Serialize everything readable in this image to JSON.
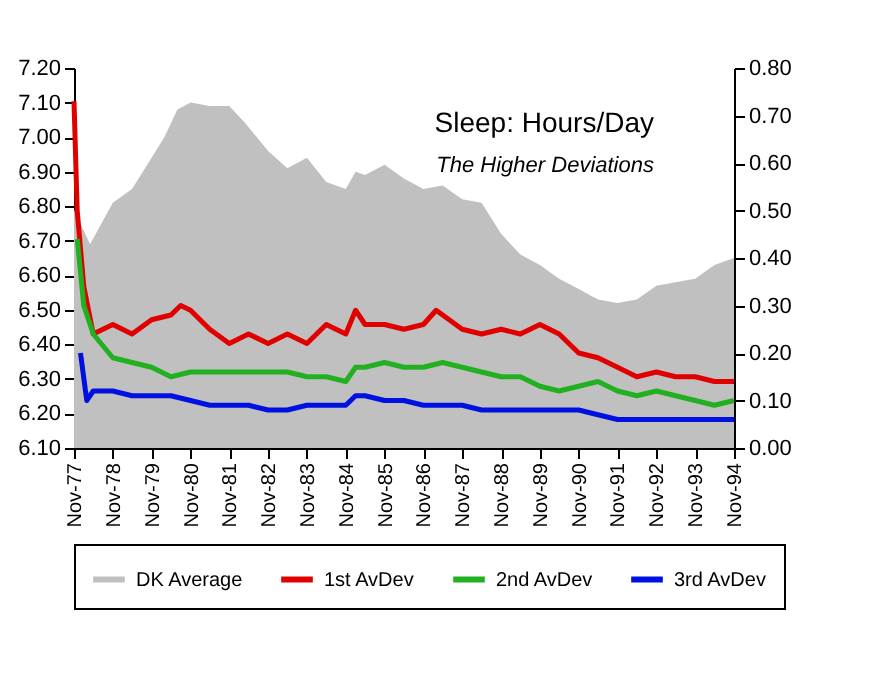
{
  "chart_data": {
    "type": "line",
    "title": "Sleep: Hours/Day",
    "subtitle": "The Higher Deviations",
    "legend": "bottom",
    "xlim": [
      "1977-11",
      "1994-11"
    ],
    "xticks": [
      {
        "value": "1977-11",
        "label": "Nov-77"
      },
      {
        "value": "1978-11",
        "label": "Nov-78"
      },
      {
        "value": "1979-11",
        "label": "Nov-79"
      },
      {
        "value": "1980-11",
        "label": "Nov-80"
      },
      {
        "value": "1981-11",
        "label": "Nov-81"
      },
      {
        "value": "1982-11",
        "label": "Nov-82"
      },
      {
        "value": "1983-11",
        "label": "Nov-83"
      },
      {
        "value": "1984-11",
        "label": "Nov-84"
      },
      {
        "value": "1985-11",
        "label": "Nov-85"
      },
      {
        "value": "1986-11",
        "label": "Nov-86"
      },
      {
        "value": "1987-11",
        "label": "Nov-87"
      },
      {
        "value": "1988-11",
        "label": "Nov-88"
      },
      {
        "value": "1989-11",
        "label": "Nov-89"
      },
      {
        "value": "1990-11",
        "label": "Nov-90"
      },
      {
        "value": "1991-11",
        "label": "Nov-91"
      },
      {
        "value": "1992-11",
        "label": "Nov-92"
      },
      {
        "value": "1993-11",
        "label": "Nov-93"
      },
      {
        "value": "1994-11",
        "label": "Nov-94"
      }
    ],
    "ylim": [
      6.1,
      7.2
    ],
    "yticks": [
      {
        "value": 6.1,
        "label": "6.10"
      },
      {
        "value": 6.2,
        "label": "6.20"
      },
      {
        "value": 6.3,
        "label": "6.30"
      },
      {
        "value": 6.4,
        "label": "6.40"
      },
      {
        "value": 6.5,
        "label": "6.50"
      },
      {
        "value": 6.6,
        "label": "6.60"
      },
      {
        "value": 6.7,
        "label": "6.70"
      },
      {
        "value": 6.8,
        "label": "6.80"
      },
      {
        "value": 6.9,
        "label": "6.90"
      },
      {
        "value": 7.0,
        "label": "7.00"
      },
      {
        "value": 7.1,
        "label": "7.10"
      },
      {
        "value": 7.2,
        "label": "7.20"
      }
    ],
    "y2lim": [
      0,
      0.8
    ],
    "y2ticks": [
      {
        "value": 0,
        "label": "0.00"
      },
      {
        "value": 0.1,
        "label": "0.10"
      },
      {
        "value": 0.2,
        "label": "0.20"
      },
      {
        "value": 0.3,
        "label": "0.30"
      },
      {
        "value": 0.4,
        "label": "0.40"
      },
      {
        "value": 0.5,
        "label": "0.50"
      },
      {
        "value": 0.6,
        "label": "0.60"
      },
      {
        "value": 0.7,
        "label": "0.70"
      },
      {
        "value": 0.8,
        "label": "0.80"
      }
    ],
    "series": [
      {
        "name": "DK Average",
        "type": "area",
        "color": "#c0c0c0",
        "x": [
          "1977-11",
          "1978-04",
          "1978-11",
          "1979-05",
          "1979-11",
          "1980-03",
          "1980-07",
          "1980-11",
          "1981-05",
          "1981-11",
          "1982-04",
          "1982-11",
          "1983-05",
          "1983-11",
          "1984-05",
          "1984-11",
          "1985-02",
          "1985-05",
          "1985-11",
          "1986-05",
          "1986-11",
          "1987-05",
          "1987-11",
          "1988-05",
          "1988-11",
          "1989-05",
          "1989-11",
          "1990-05",
          "1990-11",
          "1991-05",
          "1991-11",
          "1992-05",
          "1992-11",
          "1993-05",
          "1993-11",
          "1994-05",
          "1994-11"
        ],
        "values": [
          6.79,
          6.69,
          6.81,
          6.85,
          6.94,
          7.0,
          7.08,
          7.1,
          7.09,
          7.09,
          7.04,
          6.96,
          6.91,
          6.94,
          6.87,
          6.85,
          6.9,
          6.89,
          6.92,
          6.88,
          6.85,
          6.86,
          6.82,
          6.81,
          6.72,
          6.66,
          6.63,
          6.59,
          6.56,
          6.53,
          6.52,
          6.53,
          6.57,
          6.58,
          6.59,
          6.63,
          6.65
        ]
      },
      {
        "name": "1st AvDev",
        "type": "line",
        "axis": "y2",
        "color": "#e00000",
        "x": [
          "1977-11",
          "1977-12",
          "1978-02",
          "1978-05",
          "1978-11",
          "1979-05",
          "1979-11",
          "1980-05",
          "1980-08",
          "1980-11",
          "1981-05",
          "1981-11",
          "1982-05",
          "1982-11",
          "1983-05",
          "1983-11",
          "1984-05",
          "1984-11",
          "1985-02",
          "1985-05",
          "1985-11",
          "1986-05",
          "1986-11",
          "1987-03",
          "1987-11",
          "1988-05",
          "1988-11",
          "1989-05",
          "1989-11",
          "1990-05",
          "1990-11",
          "1991-05",
          "1991-11",
          "1992-05",
          "1992-11",
          "1993-05",
          "1993-11",
          "1994-05",
          "1994-11"
        ],
        "values": [
          0.73,
          0.5,
          0.34,
          0.24,
          0.26,
          0.24,
          0.27,
          0.28,
          0.3,
          0.29,
          0.25,
          0.22,
          0.24,
          0.22,
          0.24,
          0.22,
          0.26,
          0.24,
          0.29,
          0.26,
          0.26,
          0.25,
          0.26,
          0.29,
          0.25,
          0.24,
          0.25,
          0.24,
          0.26,
          0.24,
          0.2,
          0.19,
          0.17,
          0.15,
          0.16,
          0.15,
          0.15,
          0.14,
          0.14
        ]
      },
      {
        "name": "2nd AvDev",
        "type": "line",
        "axis": "y2",
        "color": "#20b020",
        "x": [
          "1977-12",
          "1978-02",
          "1978-05",
          "1978-11",
          "1979-05",
          "1979-11",
          "1980-05",
          "1980-11",
          "1981-05",
          "1981-11",
          "1982-05",
          "1982-11",
          "1983-05",
          "1983-11",
          "1984-05",
          "1984-11",
          "1985-02",
          "1985-05",
          "1985-11",
          "1986-05",
          "1986-11",
          "1987-05",
          "1987-11",
          "1988-05",
          "1988-11",
          "1989-05",
          "1989-11",
          "1990-05",
          "1990-11",
          "1991-05",
          "1991-11",
          "1992-05",
          "1992-11",
          "1993-05",
          "1993-11",
          "1994-05",
          "1994-11"
        ],
        "values": [
          0.44,
          0.3,
          0.24,
          0.19,
          0.18,
          0.17,
          0.15,
          0.16,
          0.16,
          0.16,
          0.16,
          0.16,
          0.16,
          0.15,
          0.15,
          0.14,
          0.17,
          0.17,
          0.18,
          0.17,
          0.17,
          0.18,
          0.17,
          0.16,
          0.15,
          0.15,
          0.13,
          0.12,
          0.13,
          0.14,
          0.12,
          0.11,
          0.12,
          0.11,
          0.1,
          0.09,
          0.1
        ]
      },
      {
        "name": "3rd AvDev",
        "type": "line",
        "axis": "y2",
        "color": "#0010e0",
        "x": [
          "1978-01",
          "1978-03",
          "1978-05",
          "1978-11",
          "1979-05",
          "1979-11",
          "1980-05",
          "1980-11",
          "1981-05",
          "1981-11",
          "1982-05",
          "1982-11",
          "1983-05",
          "1983-11",
          "1984-05",
          "1984-11",
          "1985-02",
          "1985-05",
          "1985-11",
          "1986-05",
          "1986-11",
          "1987-05",
          "1987-11",
          "1988-05",
          "1988-11",
          "1989-05",
          "1989-11",
          "1990-05",
          "1990-11",
          "1991-05",
          "1991-11",
          "1992-05",
          "1992-11",
          "1993-05",
          "1993-11",
          "1994-05",
          "1994-11"
        ],
        "values": [
          0.2,
          0.1,
          0.12,
          0.12,
          0.11,
          0.11,
          0.11,
          0.1,
          0.09,
          0.09,
          0.09,
          0.08,
          0.08,
          0.09,
          0.09,
          0.09,
          0.11,
          0.11,
          0.1,
          0.1,
          0.09,
          0.09,
          0.09,
          0.08,
          0.08,
          0.08,
          0.08,
          0.08,
          0.08,
          0.07,
          0.06,
          0.06,
          0.06,
          0.06,
          0.06,
          0.06,
          0.06
        ]
      }
    ]
  }
}
